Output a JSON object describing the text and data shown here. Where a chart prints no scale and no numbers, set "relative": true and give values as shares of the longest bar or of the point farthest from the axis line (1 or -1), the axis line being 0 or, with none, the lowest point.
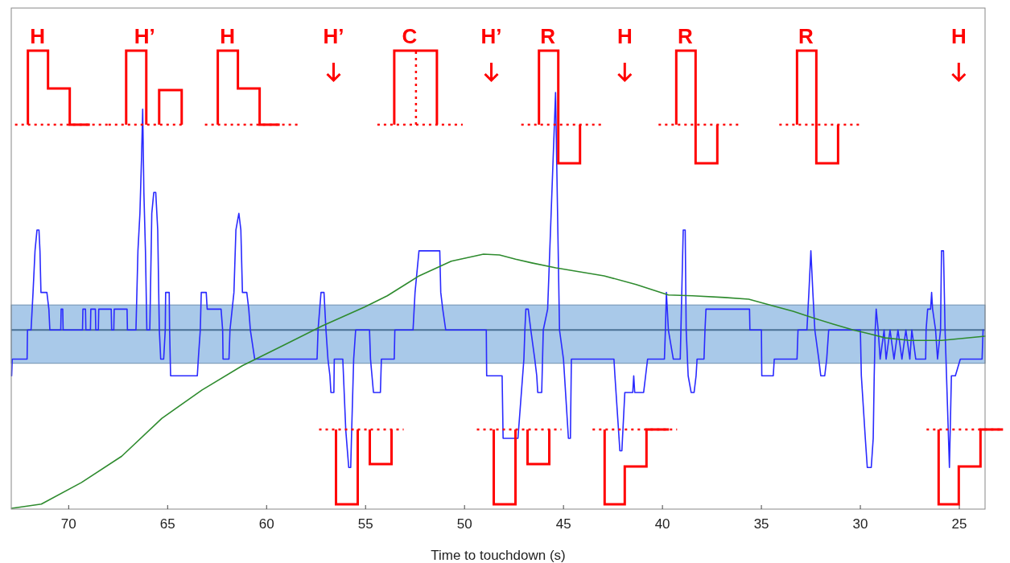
{
  "chart_data": {
    "type": "line",
    "relative": true,
    "xlabel": "Time to touchdown (s)",
    "xlim": [
      72.9,
      23.7
    ],
    "xticks": [
      70,
      65,
      60,
      55,
      50,
      45,
      40,
      35,
      30,
      25
    ],
    "grid": false,
    "line_style": "solid",
    "bands": [
      {
        "axis": "y",
        "from": 0.35,
        "to": 0.49,
        "color": "#a9c9e9"
      }
    ],
    "ref_lines": [
      {
        "axis": "y",
        "value": 0.43,
        "color": "#4a7095"
      }
    ],
    "annotations": [
      "H",
      "H’",
      "H",
      "H’",
      "C",
      "H’",
      "R",
      "H",
      "R",
      "R",
      "H"
    ],
    "series": [
      {
        "color": "#2a2aff",
        "x": [
          72.88,
          72.85,
          72.1,
          72.08,
          71.9,
          71.8,
          71.7,
          71.6,
          71.5,
          71.45,
          71.4,
          71.1,
          71.0,
          70.95,
          70.4,
          70.38,
          70.3,
          70.28,
          69.3,
          69.28,
          69.15,
          69.13,
          68.9,
          68.88,
          68.65,
          68.63,
          68.5,
          68.48,
          67.85,
          67.83,
          67.72,
          67.7,
          67.05,
          67.03,
          66.6,
          66.5,
          66.4,
          66.32,
          66.26,
          66.2,
          66.12,
          66.05,
          65.9,
          65.8,
          65.7,
          65.6,
          65.5,
          65.42,
          65.35,
          65.2,
          65.12,
          65.1,
          64.92,
          64.9,
          64.85,
          63.5,
          63.45,
          63.35,
          63.3,
          63.05,
          63.0,
          62.3,
          62.22,
          62.2,
          61.9,
          61.85,
          61.65,
          61.55,
          61.4,
          61.3,
          61.22,
          61.0,
          60.9,
          60.82,
          60.6,
          57.45,
          57.4,
          57.25,
          57.1,
          57.0,
          56.9,
          56.8,
          56.75,
          56.6,
          56.58,
          56.15,
          56.0,
          55.85,
          55.75,
          55.7,
          55.6,
          55.5,
          54.8,
          54.75,
          54.6,
          54.25,
          54.2,
          53.55,
          53.52,
          52.6,
          52.5,
          52.3,
          51.25,
          51.2,
          51.1,
          50.95,
          48.9,
          48.88,
          48.1,
          48.05,
          47.3,
          47.0,
          46.95,
          46.9,
          46.78,
          46.65,
          46.45,
          46.35,
          46.3,
          46.1,
          46.02,
          45.8,
          45.4,
          45.2,
          45.0,
          44.75,
          44.65,
          44.6,
          42.45,
          42.4,
          42.15,
          42.05,
          41.9,
          41.5,
          41.45,
          41.4,
          40.95,
          40.85,
          40.75,
          39.9,
          39.85,
          39.8,
          39.7,
          39.45,
          39.1,
          38.95,
          38.85,
          38.8,
          38.7,
          38.55,
          38.4,
          38.3,
          38.25,
          37.9,
          37.85,
          37.8,
          35.6,
          35.58,
          35.0,
          34.98,
          34.4,
          34.35,
          33.2,
          33.15,
          32.7,
          32.6,
          32.5,
          32.4,
          32.3,
          32.1,
          32.0,
          31.8,
          31.7,
          31.6,
          30.0,
          29.95,
          29.75,
          29.65,
          29.45,
          29.35,
          29.3,
          29.25,
          29.2,
          29.1,
          29.0,
          28.8,
          28.7,
          28.5,
          28.3,
          28.1,
          27.9,
          27.7,
          27.5,
          27.4,
          27.2,
          26.7,
          26.68,
          26.6,
          26.45,
          26.4,
          26.35,
          26.2,
          26.1,
          25.95,
          25.9,
          25.8,
          25.72,
          25.5,
          25.4,
          25.2,
          24.95,
          23.85,
          23.8
        ],
        "values": [
          0.32,
          0.36,
          0.36,
          0.43,
          0.43,
          0.52,
          0.62,
          0.67,
          0.67,
          0.62,
          0.52,
          0.52,
          0.48,
          0.43,
          0.43,
          0.48,
          0.48,
          0.43,
          0.43,
          0.48,
          0.48,
          0.43,
          0.43,
          0.48,
          0.48,
          0.43,
          0.43,
          0.48,
          0.48,
          0.43,
          0.43,
          0.48,
          0.48,
          0.43,
          0.43,
          0.62,
          0.71,
          0.84,
          0.96,
          0.76,
          0.62,
          0.43,
          0.43,
          0.71,
          0.76,
          0.76,
          0.67,
          0.43,
          0.36,
          0.36,
          0.43,
          0.52,
          0.52,
          0.43,
          0.32,
          0.32,
          0.36,
          0.43,
          0.52,
          0.52,
          0.48,
          0.48,
          0.43,
          0.36,
          0.36,
          0.43,
          0.52,
          0.67,
          0.71,
          0.67,
          0.52,
          0.52,
          0.48,
          0.43,
          0.36,
          0.36,
          0.43,
          0.52,
          0.52,
          0.43,
          0.36,
          0.32,
          0.28,
          0.28,
          0.36,
          0.36,
          0.19,
          0.1,
          0.1,
          0.19,
          0.36,
          0.43,
          0.43,
          0.36,
          0.28,
          0.28,
          0.36,
          0.36,
          0.43,
          0.43,
          0.52,
          0.62,
          0.62,
          0.52,
          0.48,
          0.43,
          0.43,
          0.32,
          0.32,
          0.17,
          0.17,
          0.36,
          0.43,
          0.48,
          0.48,
          0.43,
          0.36,
          0.32,
          0.28,
          0.28,
          0.43,
          0.48,
          1.0,
          0.43,
          0.36,
          0.17,
          0.17,
          0.36,
          0.36,
          0.32,
          0.14,
          0.14,
          0.28,
          0.28,
          0.32,
          0.28,
          0.28,
          0.32,
          0.36,
          0.36,
          0.43,
          0.52,
          0.43,
          0.36,
          0.36,
          0.67,
          0.67,
          0.43,
          0.32,
          0.28,
          0.28,
          0.32,
          0.36,
          0.36,
          0.43,
          0.48,
          0.48,
          0.43,
          0.43,
          0.32,
          0.32,
          0.36,
          0.36,
          0.43,
          0.43,
          0.52,
          0.62,
          0.52,
          0.43,
          0.36,
          0.32,
          0.32,
          0.36,
          0.43,
          0.43,
          0.32,
          0.17,
          0.1,
          0.1,
          0.17,
          0.32,
          0.43,
          0.48,
          0.43,
          0.36,
          0.43,
          0.36,
          0.43,
          0.36,
          0.43,
          0.36,
          0.43,
          0.36,
          0.43,
          0.36,
          0.36,
          0.43,
          0.48,
          0.48,
          0.52,
          0.48,
          0.43,
          0.36,
          0.43,
          0.62,
          0.62,
          0.43,
          0.1,
          0.32,
          0.32,
          0.36,
          0.36,
          0.43
        ]
      },
      {
        "color": "#2e8b2e",
        "x": [
          72.88,
          71.38,
          69.35,
          67.32,
          65.29,
          63.26,
          61.23,
          59.2,
          57.17,
          55.05,
          53.9,
          52.29,
          50.67,
          49.04,
          48.23,
          47.42,
          46.6,
          45.39,
          42.95,
          41.33,
          39.7,
          38.48,
          36.86,
          35.64,
          34.42,
          33.4,
          32.39,
          31.37,
          30.36,
          29.55,
          28.73,
          27.51,
          25.89,
          23.7
        ],
        "values": [
          0.002,
          0.012,
          0.064,
          0.127,
          0.218,
          0.286,
          0.344,
          0.392,
          0.44,
          0.485,
          0.512,
          0.56,
          0.595,
          0.612,
          0.61,
          0.6,
          0.591,
          0.579,
          0.56,
          0.539,
          0.514,
          0.512,
          0.508,
          0.504,
          0.488,
          0.475,
          0.459,
          0.444,
          0.43,
          0.421,
          0.411,
          0.405,
          0.405,
          0.415
        ]
      }
    ]
  }
}
